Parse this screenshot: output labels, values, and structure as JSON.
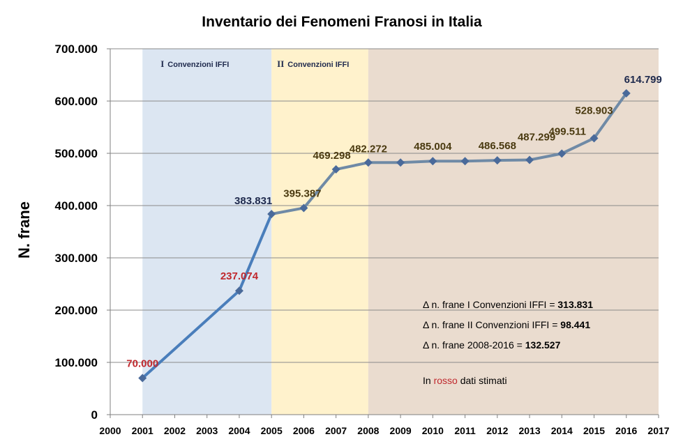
{
  "chart_data": {
    "type": "line",
    "title": "Inventario dei Fenomeni Franosi in Italia",
    "xlabel": "",
    "ylabel": "N. frane",
    "xlim": [
      2000,
      2017
    ],
    "ylim": [
      0,
      700000
    ],
    "x_ticks": [
      "2000",
      "2001",
      "2002",
      "2003",
      "2004",
      "2005",
      "2006",
      "2007",
      "2008",
      "2009",
      "2010",
      "2011",
      "2012",
      "2013",
      "2014",
      "2015",
      "2016",
      "2017"
    ],
    "y_ticks": [
      {
        "value": 0,
        "label": "0"
      },
      {
        "value": 100000,
        "label": "100.000"
      },
      {
        "value": 200000,
        "label": "200.000"
      },
      {
        "value": 300000,
        "label": "300.000"
      },
      {
        "value": 400000,
        "label": "400.000"
      },
      {
        "value": 500000,
        "label": "500.000"
      },
      {
        "value": 600000,
        "label": "600.000"
      },
      {
        "value": 700000,
        "label": "700.000"
      }
    ],
    "grid": true,
    "bands": [
      {
        "from": 2001,
        "to": 2005,
        "color": "#dce6f2",
        "label_roman": "I",
        "label": "Convenzioni IFFI"
      },
      {
        "from": 2005,
        "to": 2008,
        "color": "#fff2cc",
        "label_roman": "II",
        "label": "Convenzioni IFFI"
      },
      {
        "from": 2008,
        "to": 2017,
        "color": "#eadccf",
        "label_roman": "",
        "label": ""
      }
    ],
    "series": [
      {
        "name": "N. frane",
        "color_phase1": "#4a7ebb",
        "color_phase2": "#6f8aa6",
        "marker_color": "#4a6a9a",
        "points": [
          {
            "x": 2001,
            "y": 70000,
            "label": "70.000",
            "estimated": true
          },
          {
            "x": 2004,
            "y": 237074,
            "label": "237.074",
            "estimated": true
          },
          {
            "x": 2005,
            "y": 383831,
            "label": "383.831",
            "estimated": false
          },
          {
            "x": 2006,
            "y": 395387,
            "label": "395.387",
            "estimated": false
          },
          {
            "x": 2007,
            "y": 469298,
            "label": "469.298",
            "estimated": false
          },
          {
            "x": 2008,
            "y": 482272,
            "label": "482.272",
            "estimated": false
          },
          {
            "x": 2009,
            "y": 482272,
            "label": "",
            "estimated": false
          },
          {
            "x": 2010,
            "y": 485004,
            "label": "485.004",
            "estimated": false
          },
          {
            "x": 2011,
            "y": 485004,
            "label": "",
            "estimated": false
          },
          {
            "x": 2012,
            "y": 486568,
            "label": "486.568",
            "estimated": false
          },
          {
            "x": 2013,
            "y": 487299,
            "label": "487.299",
            "estimated": false
          },
          {
            "x": 2014,
            "y": 499511,
            "label": "499.511",
            "estimated": false
          },
          {
            "x": 2015,
            "y": 528903,
            "label": "528.903",
            "estimated": false
          },
          {
            "x": 2016,
            "y": 614799,
            "label": "614.799",
            "estimated": false
          }
        ]
      }
    ],
    "label_colors": {
      "estimated": "#c0282d",
      "first": "#1f2a4d",
      "default": "#4a3a10",
      "last": "#1f2a4d"
    },
    "annotations": [
      {
        "prefix": "Δ  n. frane I Convenzioni IFFI = ",
        "value": "313.831"
      },
      {
        "prefix": "Δ  n. frane II Convenzioni IFFI = ",
        "value": "98.441"
      },
      {
        "prefix": "Δ  n. frane 2008-2016 = ",
        "value": "132.527"
      }
    ],
    "legend_note": {
      "before": "In ",
      "highlight": "rosso",
      "after": " dati stimati",
      "highlight_color": "#c0282d"
    }
  }
}
